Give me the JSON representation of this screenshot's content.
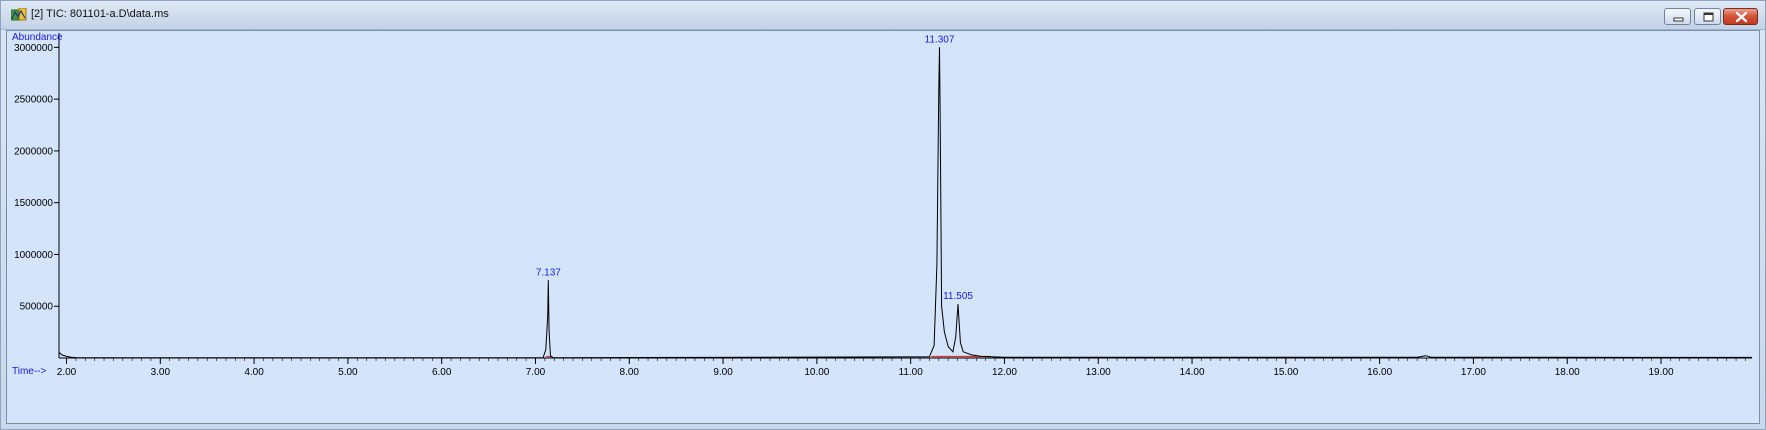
{
  "window": {
    "title": "[2] TIC: 801101-a.D\\data.ms",
    "icon": "chromatogram-app-icon",
    "controls": [
      "minimize-icon",
      "restore-icon",
      "close-icon"
    ],
    "colors": {
      "plot_background": "#d4e4fb",
      "trace": "#000000",
      "labels": "#1a1adc",
      "baseline_marks": "#e03030"
    }
  },
  "chart_data": {
    "type": "line",
    "title": "",
    "xlabel": "Time-->",
    "ylabel": "Abundance",
    "xlim": [
      1.92,
      19.97
    ],
    "ylim": [
      0,
      3100000
    ],
    "x_ticks": [
      "2.00",
      "3.00",
      "4.00",
      "5.00",
      "6.00",
      "7.00",
      "8.00",
      "9.00",
      "10.00",
      "11.00",
      "12.00",
      "13.00",
      "14.00",
      "15.00",
      "16.00",
      "17.00",
      "18.00",
      "19.00"
    ],
    "x_tick_values": [
      2,
      3,
      4,
      5,
      6,
      7,
      8,
      9,
      10,
      11,
      12,
      13,
      14,
      15,
      16,
      17,
      18,
      19
    ],
    "y_ticks": [
      "500000",
      "1000000",
      "1500000",
      "2000000",
      "2500000",
      "3000000"
    ],
    "y_tick_values": [
      500000,
      1000000,
      1500000,
      2000000,
      2500000,
      3000000
    ],
    "grid": false,
    "legend": "none",
    "series": [
      {
        "x": [
          1.92,
          1.95,
          2.0,
          2.05,
          2.1,
          2.2,
          7.08,
          7.11,
          7.13,
          7.137,
          7.145,
          7.16,
          7.19,
          11.2,
          11.25,
          11.28,
          11.3,
          11.307,
          11.315,
          11.33,
          11.36,
          11.4,
          11.45,
          11.48,
          11.505,
          11.53,
          11.56,
          11.65,
          11.75,
          12.0,
          16.4,
          16.49,
          16.55,
          19.97
        ],
        "y": [
          55000,
          30000,
          15000,
          8000,
          4000,
          2000,
          2000,
          80000,
          400000,
          750000,
          250000,
          20000,
          3000,
          12000,
          120000,
          900000,
          2600000,
          3000000,
          2300000,
          500000,
          250000,
          110000,
          60000,
          200000,
          520000,
          150000,
          60000,
          30000,
          15000,
          8000,
          8000,
          22000,
          8000,
          6000
        ]
      }
    ],
    "annotations": [
      {
        "text": "7.137",
        "x": 7.137,
        "y": 750000
      },
      {
        "text": "11.307",
        "x": 11.307,
        "y": 3000000
      },
      {
        "text": "11.505",
        "x": 11.505,
        "y": 520000
      }
    ],
    "baseline_segments": [
      [
        7.11,
        7.17
      ],
      [
        11.22,
        11.85
      ]
    ]
  }
}
